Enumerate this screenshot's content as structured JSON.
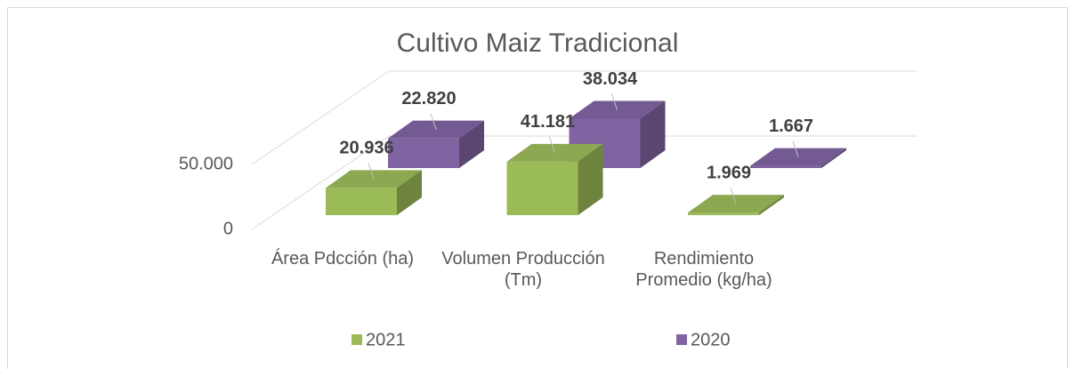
{
  "chart_data": {
    "type": "bar3d",
    "title": "Cultivo Maiz Tradicional",
    "categories": [
      "Área Pdcción (ha)",
      "Volumen Producción (Tm)",
      "Rendimiento Promedio (kg/ha)"
    ],
    "series": [
      {
        "name": "2021",
        "color": "#9bbb59",
        "values": [
          20936,
          41181,
          1969
        ],
        "value_labels": [
          "20.936",
          "41.181",
          "1.969"
        ]
      },
      {
        "name": "2020",
        "color": "#8064a2",
        "values": [
          22820,
          38034,
          1667
        ],
        "value_labels": [
          "22.820",
          "38.034",
          "1.667"
        ]
      }
    ],
    "ylim": [
      0,
      50000
    ],
    "yticks": [
      0,
      {
        "value": 50000,
        "label": "50.000"
      }
    ],
    "grid": true,
    "legend": "bottom"
  }
}
